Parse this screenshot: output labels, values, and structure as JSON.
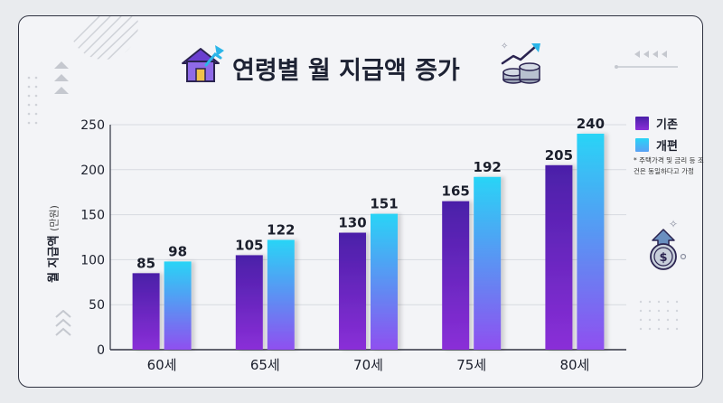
{
  "title": "연령별 월 지급액 증가",
  "y_axis_label": "월 지급액",
  "y_axis_unit": "(만원)",
  "note": "* 주택가격 및 금리 등 조건은 동일하다고 가정",
  "colors": {
    "series1_top": "#4a1fa8",
    "series1_bottom": "#8a2fd8",
    "series2_top": "#29d4f6",
    "series2_bottom": "#8f4ff0",
    "frame": "#2f3240",
    "background": "#f3f4f7"
  },
  "icons": [
    "house-growth-icon",
    "coins-growth-icon",
    "dollar-coin-up-icon",
    "sparkle-icon"
  ],
  "chart_data": {
    "type": "bar",
    "categories": [
      "60세",
      "65세",
      "70세",
      "75세",
      "80세"
    ],
    "series": [
      {
        "name": "기존",
        "values": [
          85,
          105,
          130,
          165,
          205
        ]
      },
      {
        "name": "개편",
        "values": [
          98,
          122,
          151,
          192,
          240
        ]
      }
    ],
    "ylim": [
      0,
      250
    ],
    "yticks": [
      0,
      50,
      100,
      150,
      200,
      250
    ],
    "grid": true,
    "legend": "right"
  }
}
